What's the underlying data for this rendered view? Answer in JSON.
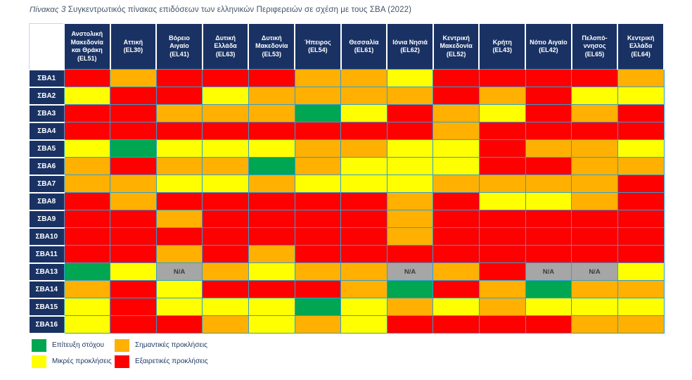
{
  "caption": {
    "label": "Πίνακας 3",
    "text": "Συγκεντρωτικός πίνακας επιδόσεων των ελληνικών Περιφερειών σε σχέση με τους ΣΒΑ (2022)"
  },
  "colors": {
    "header_bg": "#1A3263",
    "grid_border": "#2F9FD6",
    "caption_text": "#44546A",
    "green": "#00A651",
    "yellow": "#FFFF00",
    "orange": "#FFB000",
    "red": "#FF0000",
    "na_bg": "#A6A6A6",
    "na_text": "#3B3B3B"
  },
  "chart_data": {
    "type": "heatmap",
    "value_meaning": {
      "G": "Επίτευξη στόχου",
      "Y": "Μικρές προκλήσεις",
      "O": "Σημαντικές προκλήσεις",
      "R": "Εξαιρετικές προκλήσεις",
      "NA": "N/A"
    },
    "na_label": "N/A",
    "columns": [
      {
        "name": "Ανστολική Μακεδονία και Θράκη",
        "code": "(EL51)"
      },
      {
        "name": "Αττική",
        "code": "(EL30)"
      },
      {
        "name": "Βόρειο Αιγαίο",
        "code": "(EL41)"
      },
      {
        "name": "Δυτική Ελλάδα",
        "code": "(EL63)"
      },
      {
        "name": "Δυτική Μακεδονία",
        "code": "(EL53)"
      },
      {
        "name": "Ήπειρος",
        "code": "(EL54)"
      },
      {
        "name": "Θεσσαλία",
        "code": "(EL61)"
      },
      {
        "name": "Ιόνια Νησιά",
        "code": "(EL62)"
      },
      {
        "name": "Κεντρική Μακεδονία",
        "code": "(EL52)"
      },
      {
        "name": "Κρήτη",
        "code": "(EL43)"
      },
      {
        "name": "Νότιο Αιγαίο",
        "code": "(EL42)"
      },
      {
        "name": "Πελοπό-ννησος",
        "code": "(EL65)"
      },
      {
        "name": "Κεντρική Ελλάδα",
        "code": "(EL64)"
      }
    ],
    "rows": [
      "ΣΒΑ1",
      "ΣΒΑ2",
      "ΣΒΑ3",
      "ΣΒΑ4",
      "ΣΒΑ5",
      "ΣΒΑ6",
      "ΣΒΑ7",
      "ΣΒΑ8",
      "ΣΒΑ9",
      "ΣΒΑ10",
      "ΣΒΑ11",
      "ΣΒΑ13",
      "ΣΒΑ14",
      "ΣΒΑ15",
      "ΣΒΑ16"
    ],
    "values": [
      [
        "R",
        "O",
        "R",
        "R",
        "R",
        "O",
        "O",
        "Y",
        "R",
        "R",
        "R",
        "R",
        "O"
      ],
      [
        "Y",
        "R",
        "R",
        "Y",
        "O",
        "O",
        "O",
        "O",
        "R",
        "O",
        "R",
        "Y",
        "Y"
      ],
      [
        "R",
        "R",
        "O",
        "O",
        "O",
        "G",
        "Y",
        "R",
        "O",
        "Y",
        "R",
        "O",
        "R"
      ],
      [
        "R",
        "R",
        "R",
        "R",
        "R",
        "R",
        "R",
        "R",
        "O",
        "R",
        "R",
        "R",
        "R"
      ],
      [
        "Y",
        "G",
        "Y",
        "Y",
        "Y",
        "O",
        "O",
        "Y",
        "Y",
        "R",
        "O",
        "O",
        "Y"
      ],
      [
        "O",
        "R",
        "O",
        "O",
        "G",
        "O",
        "Y",
        "Y",
        "Y",
        "R",
        "R",
        "O",
        "O"
      ],
      [
        "O",
        "O",
        "Y",
        "Y",
        "O",
        "Y",
        "Y",
        "Y",
        "O",
        "O",
        "O",
        "O",
        "R"
      ],
      [
        "R",
        "O",
        "R",
        "R",
        "R",
        "R",
        "R",
        "O",
        "R",
        "Y",
        "Y",
        "O",
        "R"
      ],
      [
        "R",
        "R",
        "O",
        "R",
        "R",
        "R",
        "R",
        "O",
        "R",
        "R",
        "R",
        "R",
        "R"
      ],
      [
        "R",
        "R",
        "R",
        "R",
        "R",
        "R",
        "R",
        "O",
        "R",
        "R",
        "R",
        "R",
        "R"
      ],
      [
        "R",
        "R",
        "O",
        "R",
        "O",
        "R",
        "R",
        "R",
        "R",
        "R",
        "R",
        "R",
        "R"
      ],
      [
        "G",
        "Y",
        "NA",
        "O",
        "Y",
        "O",
        "O",
        "NA",
        "O",
        "R",
        "NA",
        "NA",
        "Y"
      ],
      [
        "O",
        "R",
        "Y",
        "R",
        "R",
        "R",
        "O",
        "G",
        "R",
        "O",
        "G",
        "O",
        "O"
      ],
      [
        "Y",
        "R",
        "Y",
        "Y",
        "Y",
        "G",
        "Y",
        "O",
        "Y",
        "O",
        "Y",
        "Y",
        "Y"
      ],
      [
        "Y",
        "R",
        "R",
        "O",
        "Y",
        "O",
        "Y",
        "R",
        "R",
        "R",
        "R",
        "O",
        "O"
      ]
    ],
    "legend": [
      {
        "key": "G",
        "label": "Επίτευξη στόχου"
      },
      {
        "key": "O",
        "label": "Σημαντικές προκλήσεις"
      },
      {
        "key": "Y",
        "label": "Μικρές προκλήσεις"
      },
      {
        "key": "R",
        "label": "Εξαιρετικές προκλήσεις"
      }
    ]
  }
}
